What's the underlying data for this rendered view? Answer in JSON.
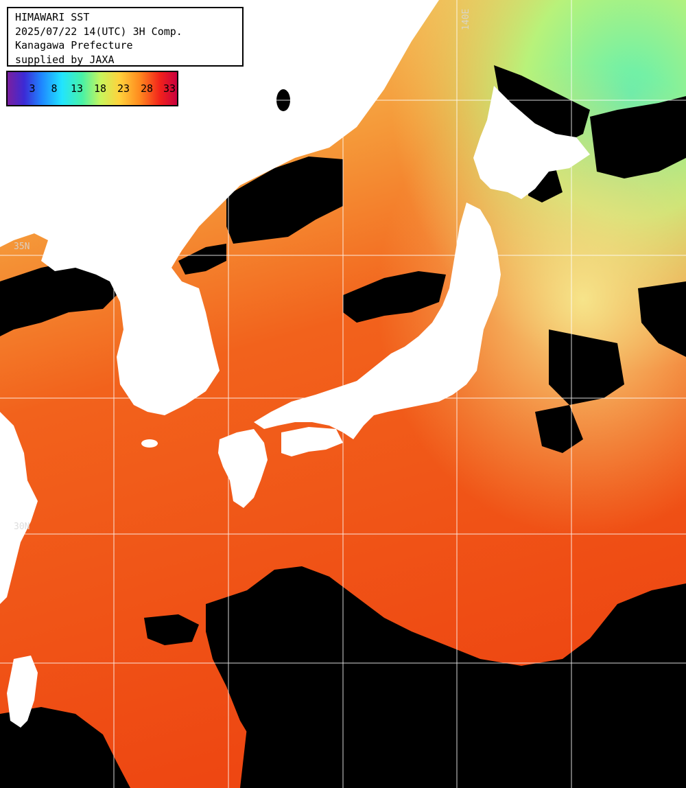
{
  "header": {
    "lines": [
      "HIMAWARI SST",
      "2025/07/22 14(UTC) 3H Comp.",
      "Kanagawa Prefecture",
      "supplied by JAXA"
    ]
  },
  "legend": {
    "ticks": [
      "3",
      "8",
      "13",
      "18",
      "23",
      "28",
      "33"
    ],
    "colors": [
      "#7a1fa0",
      "#3b2bd6",
      "#1f86ff",
      "#21e4ff",
      "#48f2a6",
      "#c8f55c",
      "#ffd23c",
      "#ff8a1e",
      "#f2221b",
      "#c8003f"
    ]
  },
  "grid_labels": {
    "lon_140": "140E",
    "lat_upper": "35N",
    "lat_lower": "30N"
  },
  "colors": {
    "land": "#ffffff",
    "cloud_mask": "#000000",
    "grid": "#ffffff",
    "sea_warm": "#f04a12",
    "sea_mid": "#f7932c",
    "sea_cool": "#f2e27a",
    "sea_cold": "#9ef08c"
  }
}
